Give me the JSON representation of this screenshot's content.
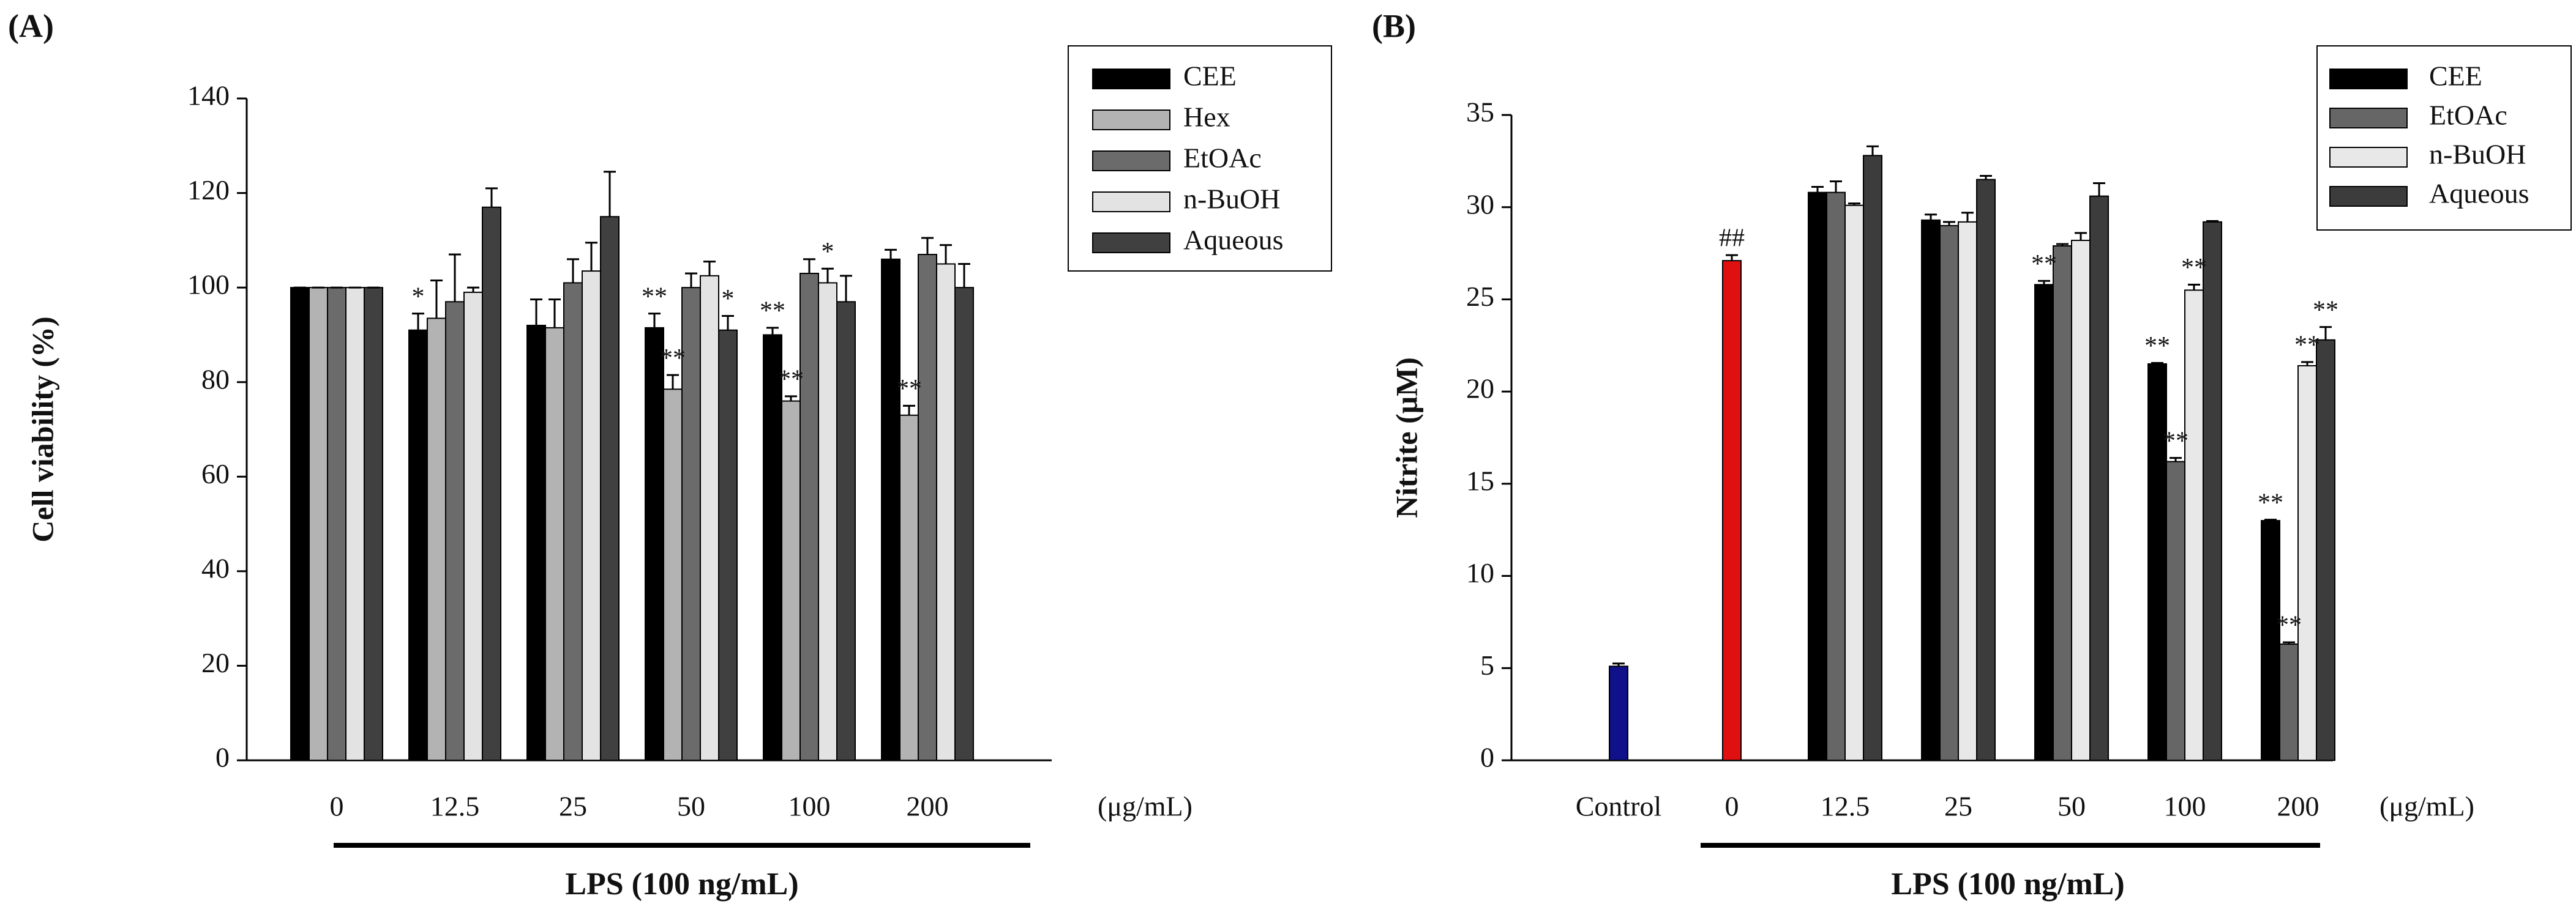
{
  "chart_data": [
    {
      "type": "bar",
      "panel_label": "(A)",
      "ylabel": "Cell viability (%)",
      "xlabel": "LPS (100 ng/mL)",
      "x_unit": "(μg/mL)",
      "categories": [
        "0",
        "12.5",
        "25",
        "50",
        "100",
        "200"
      ],
      "ylim": [
        0,
        140
      ],
      "yticks": [
        0,
        20,
        40,
        60,
        80,
        100,
        120,
        140
      ],
      "series": [
        {
          "name": "CEE",
          "color": "#000000",
          "values": [
            100,
            91,
            92,
            91.5,
            90,
            106
          ],
          "errors": [
            0,
            3.5,
            5.5,
            3,
            1.5,
            2
          ]
        },
        {
          "name": "Hex",
          "color": "#b3b3b3",
          "values": [
            100,
            93.5,
            91.5,
            78.5,
            76,
            73
          ],
          "errors": [
            0,
            8,
            6,
            3,
            1,
            2
          ]
        },
        {
          "name": "EtOAc",
          "color": "#6b6b6b",
          "values": [
            100,
            97,
            101,
            100,
            103,
            107
          ],
          "errors": [
            0,
            10,
            5,
            3,
            3,
            3.5
          ]
        },
        {
          "name": "n-BuOH",
          "color": "#e3e3e3",
          "values": [
            100,
            99,
            103.5,
            102.5,
            101,
            105
          ],
          "errors": [
            0,
            1,
            6,
            3,
            3,
            4
          ]
        },
        {
          "name": "Aqueous",
          "color": "#404040",
          "values": [
            100,
            117,
            115,
            91,
            97,
            100
          ],
          "errors": [
            0,
            4,
            9.5,
            3,
            5.5,
            5
          ]
        }
      ],
      "annotations": [
        {
          "text": "*",
          "category": "12.5",
          "series": "CEE"
        },
        {
          "text": "**",
          "category": "50",
          "series": "CEE"
        },
        {
          "text": "**",
          "category": "50",
          "series": "Hex"
        },
        {
          "text": "*",
          "category": "50",
          "series": "Aqueous"
        },
        {
          "text": "**",
          "category": "100",
          "series": "CEE"
        },
        {
          "text": "**",
          "category": "100",
          "series": "Hex"
        },
        {
          "text": "*",
          "category": "100",
          "series": "n-BuOH"
        },
        {
          "text": "**",
          "category": "200",
          "series": "Hex"
        }
      ]
    },
    {
      "type": "bar",
      "panel_label": "(B)",
      "ylabel": "Nitrite (μM)",
      "xlabel": "LPS (100 ng/mL)",
      "x_unit": "(μg/mL)",
      "categories": [
        "Control",
        "0",
        "12.5",
        "25",
        "50",
        "100",
        "200"
      ],
      "ylim": [
        0,
        35
      ],
      "yticks": [
        0,
        5,
        10,
        15,
        20,
        25,
        30,
        35
      ],
      "single_bars": [
        {
          "category": "Control",
          "value": 5.1,
          "error": 0.15,
          "color": "#10108a"
        },
        {
          "category": "0",
          "value": 27.1,
          "error": 0.3,
          "color": "#e01010"
        }
      ],
      "series": [
        {
          "name": "CEE",
          "color": "#000000",
          "values": [
            null,
            null,
            30.8,
            29.3,
            25.8,
            21.5,
            13.0
          ],
          "errors": [
            null,
            null,
            0.3,
            0.3,
            0.2,
            0.05,
            0.05
          ]
        },
        {
          "name": "EtOAc",
          "color": "#666666",
          "values": [
            null,
            null,
            30.8,
            29.0,
            27.9,
            16.2,
            6.3
          ],
          "errors": [
            null,
            null,
            0.6,
            0.2,
            0.1,
            0.2,
            0.1
          ]
        },
        {
          "name": "n-BuOH",
          "color": "#e8e8e8",
          "values": [
            null,
            null,
            30.1,
            29.2,
            28.2,
            25.5,
            21.4
          ],
          "errors": [
            null,
            null,
            0.1,
            0.5,
            0.4,
            0.3,
            0.2
          ]
        },
        {
          "name": "Aqueous",
          "color": "#3c3c3c",
          "values": [
            null,
            null,
            32.8,
            31.5,
            30.6,
            29.2,
            22.8
          ],
          "errors": [
            null,
            null,
            0.5,
            0.2,
            0.7,
            0.05,
            0.7
          ]
        }
      ],
      "annotations": [
        {
          "text": "##",
          "category": "0"
        },
        {
          "text": "**",
          "category": "50",
          "series": "CEE"
        },
        {
          "text": "**",
          "category": "100",
          "series": "CEE"
        },
        {
          "text": "**",
          "category": "100",
          "series": "EtOAc"
        },
        {
          "text": "**",
          "category": "100",
          "series": "n-BuOH"
        },
        {
          "text": "**",
          "category": "200",
          "series": "CEE"
        },
        {
          "text": "**",
          "category": "200",
          "series": "EtOAc"
        },
        {
          "text": "**",
          "category": "200",
          "series": "n-BuOH"
        },
        {
          "text": "**",
          "category": "200",
          "series": "Aqueous"
        }
      ]
    }
  ]
}
